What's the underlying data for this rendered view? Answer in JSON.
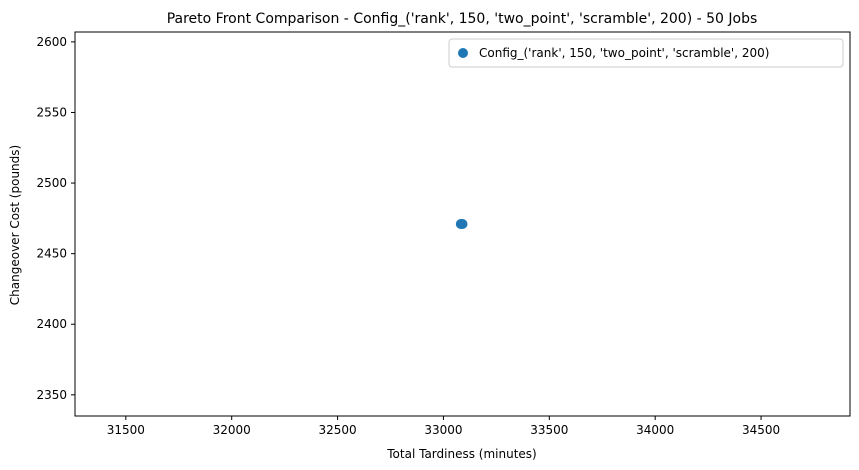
{
  "chart_data": {
    "type": "scatter",
    "title": "Pareto Front Comparison - Config_('rank', 150, 'two_point', 'scramble', 200) - 50 Jobs",
    "xlabel": "Total Tardiness (minutes)",
    "ylabel": "Changeover Cost (pounds)",
    "xlim": [
      31260,
      34920
    ],
    "ylim": [
      2335,
      2607
    ],
    "x_ticks": [
      31500,
      32000,
      32500,
      33000,
      33500,
      34000,
      34500
    ],
    "y_ticks": [
      2350,
      2400,
      2450,
      2500,
      2550,
      2600
    ],
    "grid": false,
    "legend_position": "top-right",
    "series": [
      {
        "name": "Config_('rank', 150, 'two_point', 'scramble', 200)",
        "color": "#1f77b4",
        "points": [
          {
            "x": 33086,
            "y": 2471
          },
          {
            "x": 33090,
            "y": 2471
          },
          {
            "x": 33082,
            "y": 2471
          }
        ]
      }
    ]
  }
}
